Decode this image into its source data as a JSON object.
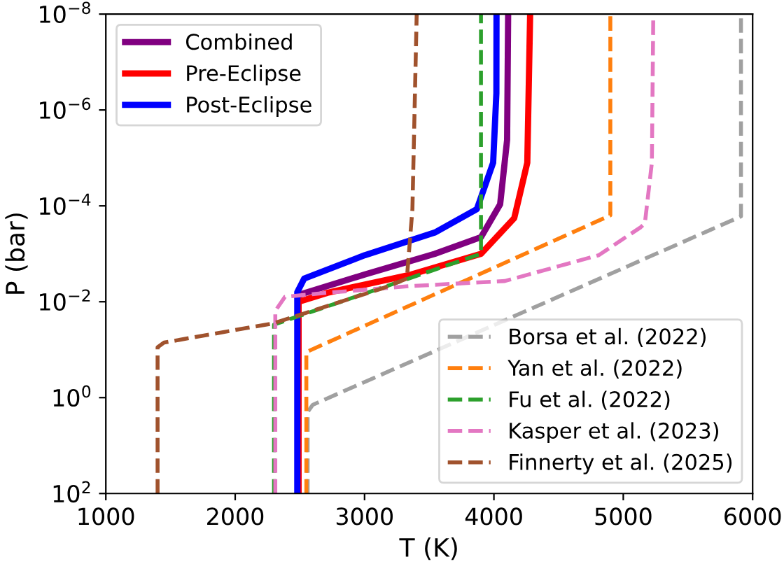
{
  "chart_data": {
    "type": "line",
    "xlabel": "T (K)",
    "ylabel": "P (bar)",
    "log": "y",
    "xlim": [
      1000,
      6000
    ],
    "xticks": [
      1000,
      2000,
      3000,
      4000,
      5000,
      6000
    ],
    "ylim": [
      100,
      1e-08
    ],
    "yticks": [
      {
        "value": 100,
        "label": "10$^{2}$"
      },
      {
        "value": 1,
        "label": "10$^{0}$"
      },
      {
        "value": 0.01,
        "label": "10$^{−2}$"
      },
      {
        "value": 0.0001,
        "label": "10$^{−4}$"
      },
      {
        "value": 1e-06,
        "label": "10$^{−6}$"
      },
      {
        "value": 1e-08,
        "label": "10$^{−8}$"
      }
    ],
    "grid": false,
    "legend": [
      "top left",
      "bottom right"
    ],
    "series": [
      {
        "name": "Combined",
        "color": "#800080",
        "line_style": "solid",
        "x": [
          2490,
          2490,
          3002,
          3543,
          3900,
          4048,
          4102,
          4110
        ],
        "values": [
          100,
          0.0072,
          0.0027,
          0.001,
          0.00045,
          9.3e-05,
          4.2e-06,
          1e-08
        ]
      },
      {
        "name": "Pre-Eclipse",
        "color": "#ff0000",
        "line_style": "solid",
        "x": [
          2490,
          2490,
          2713,
          3361,
          3900,
          4157,
          4258,
          4280
        ],
        "values": [
          100,
          0.01,
          0.0065,
          0.0027,
          0.001,
          0.00018,
          1.26e-05,
          1e-08
        ]
      },
      {
        "name": "Post-Eclipse",
        "color": "#0000ff",
        "line_style": "solid",
        "x": [
          2480,
          2480,
          2533,
          3002,
          3543,
          3868,
          3994,
          4019,
          4020
        ],
        "values": [
          100,
          0.0063,
          0.0033,
          0.00107,
          0.00036,
          0.000117,
          1.26e-05,
          4.5e-07,
          1e-08
        ]
      },
      {
        "name": "Borsa et al. (2022)",
        "color": "#a0a0a0",
        "line_style": "dashed",
        "x": [
          2560,
          2560,
          2600,
          5910,
          5910
        ],
        "values": [
          100,
          2.0,
          1.41,
          0.000166,
          1e-08
        ]
      },
      {
        "name": "Yan et al. (2022)",
        "color": "#ff7f0e",
        "line_style": "dashed",
        "x": [
          2550,
          2550,
          4900,
          4900
        ],
        "values": [
          100,
          0.112,
          0.000158,
          1e-08
        ]
      },
      {
        "name": "Fu et al. (2022)",
        "color": "#2ca02c",
        "line_style": "dashed",
        "x": [
          2300,
          2300,
          3900,
          3900
        ],
        "values": [
          100,
          0.03,
          0.001,
          1e-08
        ]
      },
      {
        "name": "Kasper et al. (2023)",
        "color": "#e377c2",
        "line_style": "dashed",
        "x": [
          2310,
          2310,
          2385,
          2713,
          3361,
          4084,
          4810,
          5134,
          5167,
          5221,
          5232
        ],
        "values": [
          100,
          0.0155,
          0.0079,
          0.0065,
          0.0047,
          0.0037,
          0.00107,
          0.00028,
          0.00023,
          1.26e-05,
          1e-08
        ]
      },
      {
        "name": "Finnerty et al. (2025)",
        "color": "#a0522d",
        "line_style": "dashed",
        "x": [
          1400,
          1400,
          1450,
          2300,
          3143,
          3327,
          3370,
          3403
        ],
        "values": [
          100,
          0.089,
          0.071,
          0.028,
          0.0052,
          0.0033,
          0.000117,
          1e-08
        ]
      }
    ]
  }
}
